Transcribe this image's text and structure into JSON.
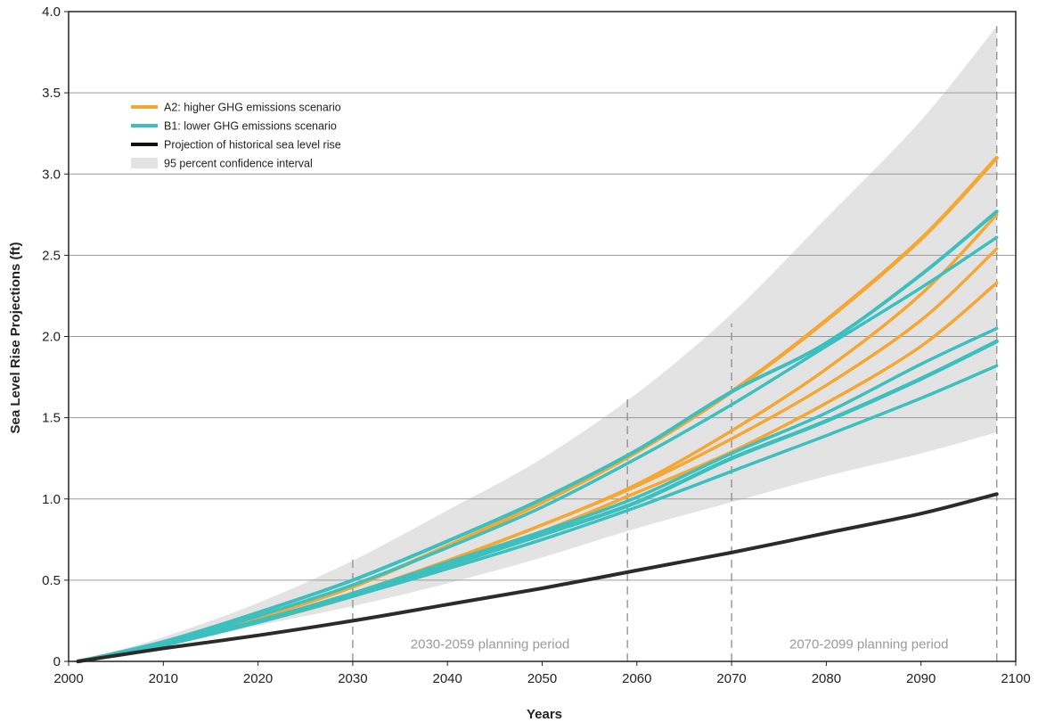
{
  "chart_data": {
    "type": "line",
    "xlabel": "Years",
    "ylabel": "Sea Level Rise Projections (ft)",
    "xlim": [
      2000,
      2100
    ],
    "ylim": [
      0,
      4.0
    ],
    "grid": "horizontal",
    "legend_placement": "top-left",
    "x_ticks": [
      2000,
      2010,
      2020,
      2030,
      2040,
      2050,
      2060,
      2070,
      2080,
      2090,
      2100
    ],
    "x_tick_labels": [
      "2000",
      "2010",
      "2020",
      "2030",
      "2040",
      "2050",
      "2060",
      "2070",
      "2080",
      "2090",
      "2100"
    ],
    "y_ticks": [
      0,
      0.5,
      1.0,
      1.5,
      2.0,
      2.5,
      3.0,
      3.5,
      4.0
    ],
    "y_tick_labels": [
      "0",
      "0.5",
      "1.0",
      "1.5",
      "2.0",
      "2.5",
      "3.0",
      "3.5",
      "4.0"
    ],
    "x": [
      2001,
      2010,
      2020,
      2030,
      2040,
      2050,
      2060,
      2070,
      2080,
      2090,
      2098
    ],
    "confidence_band": {
      "name": "95 percent confidence interval",
      "color": "#e3e3e3",
      "lower": [
        0,
        0.1,
        0.22,
        0.34,
        0.48,
        0.64,
        0.82,
        0.98,
        1.14,
        1.28,
        1.41
      ],
      "upper": [
        0,
        0.15,
        0.36,
        0.62,
        0.93,
        1.25,
        1.65,
        2.14,
        2.73,
        3.33,
        3.91
      ]
    },
    "series": [
      {
        "name": "A2: higher GHG emissions scenario",
        "color": "#f5a733",
        "width": 4.5,
        "values": [
          0,
          0.11,
          0.27,
          0.46,
          0.71,
          0.98,
          1.29,
          1.66,
          2.1,
          2.6,
          3.1
        ]
      },
      {
        "name": "",
        "color": "#f5a733",
        "width": 3.5,
        "values": [
          0,
          0.1,
          0.25,
          0.42,
          0.62,
          0.84,
          1.09,
          1.42,
          1.8,
          2.26,
          2.75
        ]
      },
      {
        "name": "",
        "color": "#f5a733",
        "width": 3.5,
        "values": [
          0,
          0.1,
          0.25,
          0.42,
          0.62,
          0.84,
          1.08,
          1.37,
          1.7,
          2.1,
          2.54
        ]
      },
      {
        "name": "",
        "color": "#f5a733",
        "width": 3.5,
        "values": [
          0,
          0.1,
          0.24,
          0.4,
          0.6,
          0.8,
          1.04,
          1.29,
          1.59,
          1.94,
          2.33
        ]
      },
      {
        "name": "B1: lower GHG emissions scenario",
        "color": "#3cbfbf",
        "width": 4,
        "values": [
          0,
          0.12,
          0.3,
          0.5,
          0.74,
          1.0,
          1.3,
          1.66,
          1.96,
          2.38,
          2.77
        ]
      },
      {
        "name": "",
        "color": "#3cbfbf",
        "width": 3.5,
        "values": [
          0,
          0.11,
          0.28,
          0.47,
          0.7,
          0.95,
          1.25,
          1.58,
          1.94,
          2.3,
          2.61
        ]
      },
      {
        "name": "",
        "color": "#3cbfbf",
        "width": 3.5,
        "values": [
          0,
          0.1,
          0.25,
          0.42,
          0.61,
          0.8,
          1.01,
          1.28,
          1.53,
          1.83,
          2.05
        ]
      },
      {
        "name": "",
        "color": "#3cbfbf",
        "width": 4.5,
        "values": [
          0,
          0.1,
          0.25,
          0.41,
          0.59,
          0.78,
          0.98,
          1.25,
          1.48,
          1.74,
          1.97
        ]
      },
      {
        "name": "",
        "color": "#3cbfbf",
        "width": 3.5,
        "values": [
          0,
          0.1,
          0.24,
          0.4,
          0.57,
          0.75,
          0.95,
          1.17,
          1.39,
          1.62,
          1.82
        ]
      },
      {
        "name": "Projection of historical sea level rise",
        "color": "#2b2b2b",
        "width": 4,
        "values": [
          0,
          0.08,
          0.16,
          0.25,
          0.35,
          0.45,
          0.56,
          0.67,
          0.79,
          0.91,
          1.03
        ]
      }
    ],
    "reference_lines": [
      {
        "x": 2030,
        "top": 0.66
      },
      {
        "x": 2059,
        "top": 1.62
      },
      {
        "x": 2070,
        "top": 2.08
      },
      {
        "x": 2098,
        "top": 3.91
      }
    ],
    "annotations": [
      {
        "text": "2030-2059 planning period",
        "x": 2044.5,
        "y": 0.08
      },
      {
        "text": "2070-2099 planning period",
        "x": 2084.5,
        "y": 0.08
      }
    ],
    "legend": [
      {
        "label": "A2: higher GHG emissions scenario",
        "color": "#f5a733",
        "kind": "line"
      },
      {
        "label": "B1: lower GHG emissions scenario",
        "color": "#3cbfbf",
        "kind": "line"
      },
      {
        "label": "Projection of historical sea level rise",
        "color": "#111111",
        "kind": "line"
      },
      {
        "label": "95 percent confidence interval",
        "color": "#e3e3e3",
        "kind": "patch"
      }
    ]
  }
}
